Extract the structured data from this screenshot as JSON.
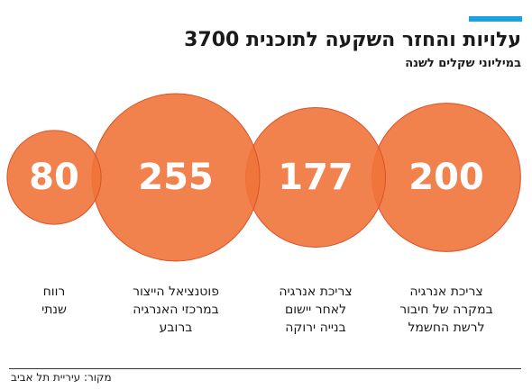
{
  "header": {
    "title": "עלויות והחזר השקעה לתוכנית 3700",
    "subtitle": "במיליוני שקלים לשנה"
  },
  "colors": {
    "accent": "#1aa3e0",
    "bubble": "#f0733a",
    "bubble_outline": "#d9532a",
    "value_text": "#ffffff"
  },
  "chart_data": {
    "type": "bubble",
    "title": "עלויות והחזר השקעה לתוכנית 3700",
    "subtitle": "במיליוני שקלים לשנה",
    "categories": [
      "צריכת אנרגיה\nבמקרה של חיבור\nלרשת החשמל",
      "צריכת אנרגיה\nלאחר יישום\nבנייה ירוקה",
      "פוטנציאל הייצור\nבמרכזי האנרגיה\nברובע",
      "רווח\nשנתי"
    ],
    "values": [
      200,
      177,
      255,
      80
    ],
    "value_labels": [
      "200",
      "177",
      "255",
      "80"
    ]
  },
  "footer": {
    "source": "מקור: עיריית תל אביב"
  }
}
